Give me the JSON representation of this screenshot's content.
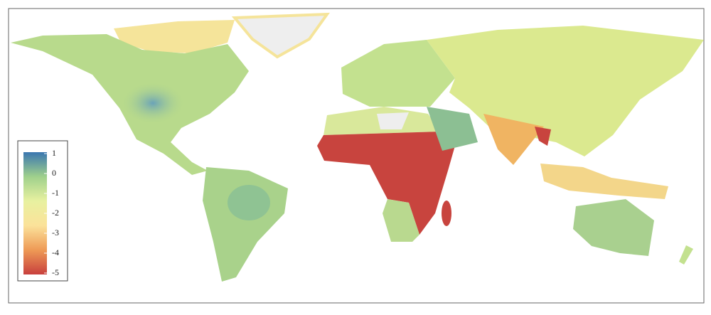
{
  "map": {
    "colorbar": {
      "lim": [
        -5,
        1
      ],
      "ticks": [
        1,
        0,
        -1,
        -2,
        -3,
        -4,
        -5
      ],
      "colors": [
        "#c8403d",
        "#ee9a56",
        "#fbe29a",
        "#e8f1a0",
        "#9fd08c",
        "#3a76b0"
      ]
    }
  }
}
